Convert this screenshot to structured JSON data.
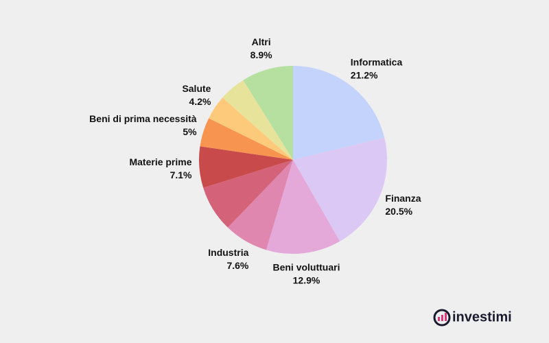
{
  "chart_data": {
    "type": "pie",
    "categories": [
      "Informatica",
      "Finanza",
      "Beni voluttuari",
      "Industria",
      null,
      "Materie prime",
      "Beni di prima necessità",
      "Salute",
      null,
      "Altri"
    ],
    "values": [
      21.2,
      20.5,
      12.9,
      7.6,
      8,
      7.1,
      5,
      4.2,
      4.6,
      8.9
    ],
    "value_labels": [
      "21.2%",
      "20.5%",
      "12.9%",
      "7.6%",
      null,
      "7.1%",
      "5%",
      "4.2%",
      null,
      "8.9%"
    ],
    "colors": [
      "#c4d3fb",
      "#dcc8f5",
      "#e4a9d9",
      "#e087b0",
      "#d4637a",
      "#c94a4a",
      "#f79550",
      "#fdc97a",
      "#e8e39a",
      "#b5e0a0"
    ]
  },
  "brand": "investimi"
}
